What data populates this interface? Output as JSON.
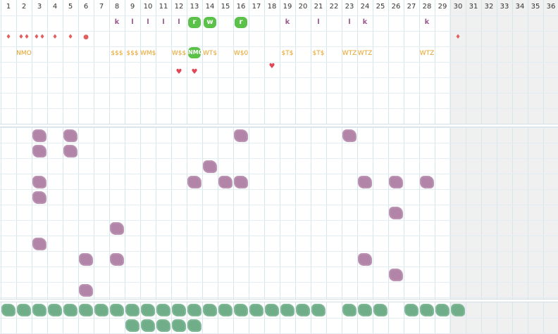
{
  "days": [
    "1",
    "2",
    "3",
    "4",
    "5",
    "6",
    "7",
    "8",
    "9",
    "10",
    "11",
    "12",
    "13",
    "14",
    "15",
    "16",
    "17",
    "18",
    "19",
    "20",
    "21",
    "22",
    "23",
    "24",
    "25",
    "26",
    "27",
    "28",
    "29",
    "30",
    "31",
    "32",
    "33",
    "34",
    "35",
    "36"
  ],
  "colors": {
    "purple": "#b184a8",
    "green": "#6fae88",
    "badge": "#5cc148",
    "code": "#e8a020",
    "drop": "#e06060",
    "heart": "#e04858"
  },
  "letters": [
    {
      "day": 8,
      "text": "k",
      "badge": false
    },
    {
      "day": 9,
      "text": "l",
      "badge": false
    },
    {
      "day": 10,
      "text": "l",
      "badge": false
    },
    {
      "day": 11,
      "text": "l",
      "badge": false
    },
    {
      "day": 12,
      "text": "l",
      "badge": false
    },
    {
      "day": 13,
      "text": "r",
      "badge": true
    },
    {
      "day": 14,
      "text": "w",
      "badge": true
    },
    {
      "day": 16,
      "text": "r",
      "badge": true
    },
    {
      "day": 19,
      "text": "k",
      "badge": false
    },
    {
      "day": 21,
      "text": "l",
      "badge": false
    },
    {
      "day": 23,
      "text": "l",
      "badge": false
    },
    {
      "day": 24,
      "text": "k",
      "badge": false
    },
    {
      "day": 28,
      "text": "k",
      "badge": false
    }
  ],
  "drops": [
    {
      "day": 1,
      "text": "♦"
    },
    {
      "day": 2,
      "text": "♦♦"
    },
    {
      "day": 3,
      "text": "♦♦"
    },
    {
      "day": 4,
      "text": "♦"
    },
    {
      "day": 5,
      "text": "♦"
    },
    {
      "day": 6,
      "text": "●"
    },
    {
      "day": 30,
      "text": "♦"
    }
  ],
  "codes": [
    {
      "day": 2,
      "text": "NMO",
      "badge": false
    },
    {
      "day": 8,
      "text": "$$$",
      "badge": false
    },
    {
      "day": 9,
      "text": "$$$",
      "badge": false
    },
    {
      "day": 10,
      "text": "WM$",
      "badge": false
    },
    {
      "day": 12,
      "text": "W$$",
      "badge": false
    },
    {
      "day": 13,
      "text": "NMO",
      "badge": true
    },
    {
      "day": 14,
      "text": "WT$",
      "badge": false
    },
    {
      "day": 16,
      "text": "W$0",
      "badge": false
    },
    {
      "day": 19,
      "text": "$T$",
      "badge": false
    },
    {
      "day": 21,
      "text": "$T$",
      "badge": false
    },
    {
      "day": 23,
      "text": "WTZ",
      "badge": false
    },
    {
      "day": 24,
      "text": "WTZ",
      "badge": false
    },
    {
      "day": 28,
      "text": "WTZ",
      "badge": false
    }
  ],
  "hearts": [
    {
      "day": 12,
      "text": "♥",
      "row": 0
    },
    {
      "day": 13,
      "text": "♥",
      "row": 0
    },
    {
      "day": 18,
      "text": "♥",
      "row": -1
    }
  ],
  "purple_marks": [
    {
      "day": 3,
      "row": 0
    },
    {
      "day": 5,
      "row": 0
    },
    {
      "day": 16,
      "row": 0
    },
    {
      "day": 23,
      "row": 0
    },
    {
      "day": 3,
      "row": 1
    },
    {
      "day": 5,
      "row": 1
    },
    {
      "day": 14,
      "row": 2
    },
    {
      "day": 3,
      "row": 3
    },
    {
      "day": 13,
      "row": 3
    },
    {
      "day": 15,
      "row": 3
    },
    {
      "day": 16,
      "row": 3
    },
    {
      "day": 24,
      "row": 3
    },
    {
      "day": 26,
      "row": 3
    },
    {
      "day": 28,
      "row": 3
    },
    {
      "day": 3,
      "row": 4
    },
    {
      "day": 26,
      "row": 5
    },
    {
      "day": 8,
      "row": 6
    },
    {
      "day": 3,
      "row": 7
    },
    {
      "day": 6,
      "row": 8
    },
    {
      "day": 8,
      "row": 8
    },
    {
      "day": 24,
      "row": 8
    },
    {
      "day": 26,
      "row": 9
    },
    {
      "day": 6,
      "row": 10
    }
  ],
  "green_marks": [
    {
      "day": 1,
      "row": 0
    },
    {
      "day": 2,
      "row": 0
    },
    {
      "day": 3,
      "row": 0
    },
    {
      "day": 4,
      "row": 0
    },
    {
      "day": 5,
      "row": 0
    },
    {
      "day": 6,
      "row": 0
    },
    {
      "day": 7,
      "row": 0
    },
    {
      "day": 8,
      "row": 0
    },
    {
      "day": 9,
      "row": 0
    },
    {
      "day": 10,
      "row": 0
    },
    {
      "day": 11,
      "row": 0
    },
    {
      "day": 12,
      "row": 0
    },
    {
      "day": 13,
      "row": 0
    },
    {
      "day": 14,
      "row": 0
    },
    {
      "day": 15,
      "row": 0
    },
    {
      "day": 16,
      "row": 0
    },
    {
      "day": 17,
      "row": 0
    },
    {
      "day": 18,
      "row": 0
    },
    {
      "day": 19,
      "row": 0
    },
    {
      "day": 20,
      "row": 0
    },
    {
      "day": 21,
      "row": 0
    },
    {
      "day": 23,
      "row": 0
    },
    {
      "day": 24,
      "row": 0
    },
    {
      "day": 25,
      "row": 0
    },
    {
      "day": 27,
      "row": 0
    },
    {
      "day": 28,
      "row": 0
    },
    {
      "day": 29,
      "row": 0
    },
    {
      "day": 30,
      "row": 0
    },
    {
      "day": 9,
      "row": 1
    },
    {
      "day": 10,
      "row": 1
    },
    {
      "day": 11,
      "row": 1
    },
    {
      "day": 12,
      "row": 1
    },
    {
      "day": 13,
      "row": 1
    }
  ]
}
